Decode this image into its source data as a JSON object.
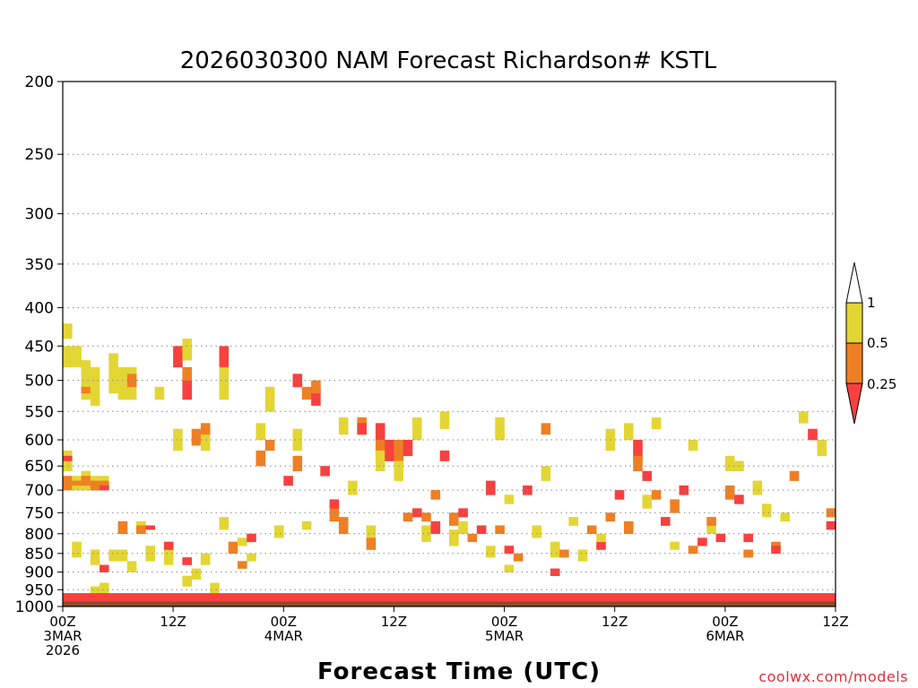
{
  "chart_data": {
    "type": "heatmap",
    "title": "2026030300 NAM Forecast Richardson# KSTL",
    "xlabel": "Forecast Time (UTC)",
    "ylabel": "",
    "credit": "coolwx.com/models",
    "y_axis": {
      "scale": "pressure-log",
      "range_hpa": [
        1000,
        200
      ],
      "ticks": [
        "200",
        "250",
        "300",
        "350",
        "400",
        "450",
        "500",
        "550",
        "600",
        "650",
        "700",
        "750",
        "800",
        "850",
        "900",
        "950",
        "1000"
      ],
      "gridlines": "dotted"
    },
    "x_axis": {
      "range_hours": [
        0,
        84
      ],
      "ticks": [
        {
          "hour": 0,
          "line1": "00Z",
          "line2": "3MAR",
          "line3": "2026"
        },
        {
          "hour": 12,
          "line1": "12Z",
          "line2": "",
          "line3": ""
        },
        {
          "hour": 24,
          "line1": "00Z",
          "line2": "4MAR",
          "line3": ""
        },
        {
          "hour": 36,
          "line1": "12Z",
          "line2": "",
          "line3": ""
        },
        {
          "hour": 48,
          "line1": "00Z",
          "line2": "5MAR",
          "line3": ""
        },
        {
          "hour": 60,
          "line1": "12Z",
          "line2": "",
          "line3": ""
        },
        {
          "hour": 72,
          "line1": "00Z",
          "line2": "6MAR",
          "line3": ""
        },
        {
          "hour": 84,
          "line1": "12Z",
          "line2": "",
          "line3": ""
        }
      ]
    },
    "colorbar": {
      "labels": [
        "1",
        "0.5",
        "0.25"
      ],
      "classes": [
        {
          "range": "> 1",
          "color": "#ffffff"
        },
        {
          "range": "0.5 - 1",
          "color": "#e3d634"
        },
        {
          "range": "0.25 - 0.5",
          "color": "#ef7f24"
        },
        {
          "range": "< 0.25",
          "color": "#f8403f"
        }
      ]
    },
    "colors": {
      "low": "#f8403f",
      "mid": "#ef7f24",
      "high": "#e3d634",
      "ground": "#8b4a2b"
    },
    "cell_hours": 1,
    "cell_hpa": 10,
    "surface_pressure_hpa": 985,
    "cells": [
      [
        "Y",
        0,
        22,
        24
      ],
      [
        "Y",
        0,
        25,
        28
      ],
      [
        "Y",
        0,
        42,
        46
      ],
      [
        "R",
        0,
        43,
        44
      ],
      [
        "O",
        0,
        47,
        50
      ],
      [
        "Y",
        1,
        25,
        28
      ],
      [
        "Y",
        1,
        47,
        50
      ],
      [
        "O",
        1,
        48,
        49
      ],
      [
        "Y",
        1,
        62,
        66
      ],
      [
        "Y",
        2,
        27,
        30
      ],
      [
        "Y",
        2,
        30,
        33
      ],
      [
        "O",
        2,
        31,
        32
      ],
      [
        "Y",
        2,
        46,
        50
      ],
      [
        "O",
        2,
        47,
        49
      ],
      [
        "Y",
        3,
        28,
        34
      ],
      [
        "Y",
        3,
        47,
        50
      ],
      [
        "O",
        3,
        48,
        50
      ],
      [
        "Y",
        3,
        64,
        68
      ],
      [
        "Y",
        3,
        74,
        76
      ],
      [
        "R",
        4,
        68,
        70
      ],
      [
        "Y",
        4,
        73,
        77
      ],
      [
        "Y",
        4,
        47,
        50
      ],
      [
        "O",
        4,
        48,
        50
      ],
      [
        "R",
        4,
        49,
        50
      ],
      [
        "Y",
        5,
        26,
        32
      ],
      [
        "Y",
        5,
        64,
        67
      ],
      [
        "Y",
        6,
        28,
        33
      ],
      [
        "Y",
        6,
        64,
        67
      ],
      [
        "O",
        6,
        57,
        60
      ],
      [
        "Y",
        7,
        28,
        33
      ],
      [
        "O",
        7,
        29,
        31
      ],
      [
        "Y",
        7,
        67,
        70
      ],
      [
        "Y",
        8,
        57,
        60
      ],
      [
        "O",
        8,
        58,
        60
      ],
      [
        "R",
        9,
        58,
        59
      ],
      [
        "Y",
        9,
        63,
        67
      ],
      [
        "Y",
        10,
        31,
        33
      ],
      [
        "Y",
        11,
        64,
        68
      ],
      [
        "R",
        11,
        62,
        64
      ],
      [
        "Y",
        12,
        38,
        42
      ],
      [
        "R",
        12,
        25,
        28
      ],
      [
        "Y",
        13,
        24,
        27
      ],
      [
        "R",
        13,
        30,
        33
      ],
      [
        "O",
        13,
        28,
        30
      ],
      [
        "Y",
        13,
        71,
        74
      ],
      [
        "R",
        13,
        66,
        68
      ],
      [
        "O",
        14,
        38,
        41
      ],
      [
        "Y",
        14,
        69,
        72
      ],
      [
        "Y",
        15,
        38,
        42
      ],
      [
        "O",
        15,
        37,
        39
      ],
      [
        "Y",
        15,
        65,
        68
      ],
      [
        "Y",
        16,
        73,
        76
      ],
      [
        "R",
        17,
        25,
        28
      ],
      [
        "Y",
        17,
        28,
        33
      ],
      [
        "Y",
        17,
        56,
        59
      ],
      [
        "O",
        18,
        62,
        65
      ],
      [
        "Y",
        19,
        61,
        63
      ],
      [
        "O",
        19,
        67,
        69
      ],
      [
        "R",
        20,
        60,
        62
      ],
      [
        "Y",
        20,
        65,
        67
      ],
      [
        "Y",
        21,
        37,
        40
      ],
      [
        "O",
        21,
        42,
        45
      ],
      [
        "Y",
        22,
        31,
        35
      ],
      [
        "O",
        22,
        40,
        42
      ],
      [
        "Y",
        23,
        58,
        61
      ],
      [
        "R",
        24,
        47,
        49
      ],
      [
        "Y",
        25,
        38,
        42
      ],
      [
        "O",
        25,
        43,
        46
      ],
      [
        "R",
        25,
        29,
        31
      ],
      [
        "O",
        26,
        31,
        33
      ],
      [
        "Y",
        26,
        57,
        59
      ],
      [
        "R",
        27,
        31,
        34
      ],
      [
        "O",
        27,
        30,
        32
      ],
      [
        "R",
        28,
        45,
        47
      ],
      [
        "O",
        29,
        53,
        57
      ],
      [
        "R",
        29,
        52,
        54
      ],
      [
        "Y",
        30,
        36,
        39
      ],
      [
        "O",
        30,
        56,
        60
      ],
      [
        "Y",
        31,
        48,
        51
      ],
      [
        "O",
        32,
        36,
        39
      ],
      [
        "R",
        32,
        37,
        39
      ],
      [
        "Y",
        33,
        58,
        61
      ],
      [
        "O",
        33,
        61,
        64
      ],
      [
        "R",
        34,
        37,
        40
      ],
      [
        "O",
        34,
        40,
        43
      ],
      [
        "Y",
        34,
        42,
        46
      ],
      [
        "R",
        35,
        40,
        44
      ],
      [
        "O",
        36,
        40,
        45
      ],
      [
        "Y",
        36,
        44,
        48
      ],
      [
        "R",
        37,
        40,
        43
      ],
      [
        "O",
        37,
        55,
        57
      ],
      [
        "Y",
        38,
        36,
        40
      ],
      [
        "R",
        38,
        54,
        56
      ],
      [
        "Y",
        39,
        58,
        62
      ],
      [
        "O",
        39,
        55,
        57
      ],
      [
        "R",
        40,
        57,
        60
      ],
      [
        "O",
        40,
        50,
        52
      ],
      [
        "Y",
        41,
        35,
        38
      ],
      [
        "R",
        41,
        42,
        44
      ],
      [
        "Y",
        42,
        59,
        63
      ],
      [
        "O",
        42,
        55,
        58
      ],
      [
        "R",
        43,
        54,
        56
      ],
      [
        "Y",
        43,
        57,
        60
      ],
      [
        "O",
        44,
        60,
        62
      ],
      [
        "R",
        45,
        58,
        60
      ],
      [
        "Y",
        46,
        63,
        66
      ],
      [
        "R",
        46,
        48,
        51
      ],
      [
        "Y",
        47,
        36,
        40
      ],
      [
        "O",
        47,
        58,
        60
      ],
      [
        "Y",
        48,
        51,
        53
      ],
      [
        "R",
        48,
        63,
        65
      ],
      [
        "Y",
        48,
        68,
        70
      ],
      [
        "O",
        49,
        65,
        67
      ],
      [
        "R",
        50,
        49,
        51
      ],
      [
        "Y",
        51,
        58,
        61
      ],
      [
        "Y",
        52,
        45,
        48
      ],
      [
        "O",
        52,
        37,
        39
      ],
      [
        "Y",
        53,
        62,
        66
      ],
      [
        "R",
        53,
        69,
        71
      ],
      [
        "O",
        54,
        64,
        66
      ],
      [
        "Y",
        55,
        56,
        58
      ],
      [
        "Y",
        56,
        64,
        67
      ],
      [
        "O",
        57,
        58,
        60
      ],
      [
        "R",
        58,
        62,
        64
      ],
      [
        "Y",
        58,
        60,
        62
      ],
      [
        "Y",
        59,
        38,
        42
      ],
      [
        "O",
        59,
        55,
        57
      ],
      [
        "R",
        60,
        50,
        52
      ],
      [
        "Y",
        61,
        37,
        40
      ],
      [
        "O",
        61,
        57,
        60
      ],
      [
        "R",
        62,
        40,
        44
      ],
      [
        "O",
        62,
        43,
        46
      ],
      [
        "Y",
        63,
        51,
        54
      ],
      [
        "R",
        63,
        46,
        48
      ],
      [
        "Y",
        64,
        36,
        38
      ],
      [
        "O",
        64,
        50,
        52
      ],
      [
        "R",
        65,
        56,
        58
      ],
      [
        "Y",
        66,
        62,
        64
      ],
      [
        "O",
        66,
        52,
        55
      ],
      [
        "R",
        67,
        49,
        51
      ],
      [
        "Y",
        68,
        40,
        42
      ],
      [
        "O",
        68,
        63,
        65
      ],
      [
        "R",
        69,
        61,
        63
      ],
      [
        "Y",
        70,
        58,
        60
      ],
      [
        "O",
        70,
        56,
        58
      ],
      [
        "R",
        71,
        60,
        62
      ],
      [
        "Y",
        72,
        43,
        46
      ],
      [
        "O",
        72,
        49,
        52
      ],
      [
        "R",
        73,
        51,
        53
      ],
      [
        "Y",
        73,
        44,
        46
      ],
      [
        "R",
        74,
        60,
        62
      ],
      [
        "O",
        74,
        64,
        66
      ],
      [
        "Y",
        75,
        48,
        51
      ],
      [
        "Y",
        76,
        53,
        56
      ],
      [
        "O",
        77,
        62,
        64
      ],
      [
        "R",
        77,
        63,
        65
      ],
      [
        "Y",
        78,
        55,
        57
      ],
      [
        "O",
        79,
        46,
        48
      ],
      [
        "Y",
        80,
        35,
        37
      ],
      [
        "R",
        81,
        38,
        40
      ],
      [
        "Y",
        82,
        40,
        43
      ],
      [
        "O",
        83,
        54,
        56
      ],
      [
        "R",
        83,
        57,
        59
      ]
    ]
  }
}
